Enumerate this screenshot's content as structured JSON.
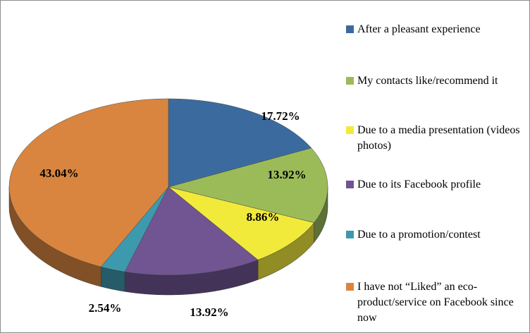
{
  "chart_data": {
    "type": "pie",
    "categories": [
      "After a pleasant experience",
      "My contacts like/recommend it",
      "Due to a media presentation (videos photos)",
      "Due to its Facebook profile",
      "Due to a promotion/contest",
      "I have not “Liked” an eco-product/service on Facebook since now"
    ],
    "values": [
      17.72,
      13.92,
      8.86,
      13.92,
      2.54,
      43.04
    ],
    "value_labels": [
      "17.72%",
      "13.92%",
      "8.86%",
      "13.92%",
      "2.54%",
      "43.04%"
    ],
    "colors": [
      "#3b6b9e",
      "#9bbb59",
      "#f2ea3a",
      "#705592",
      "#3d9aae",
      "#d9853f"
    ],
    "legend": "right"
  }
}
